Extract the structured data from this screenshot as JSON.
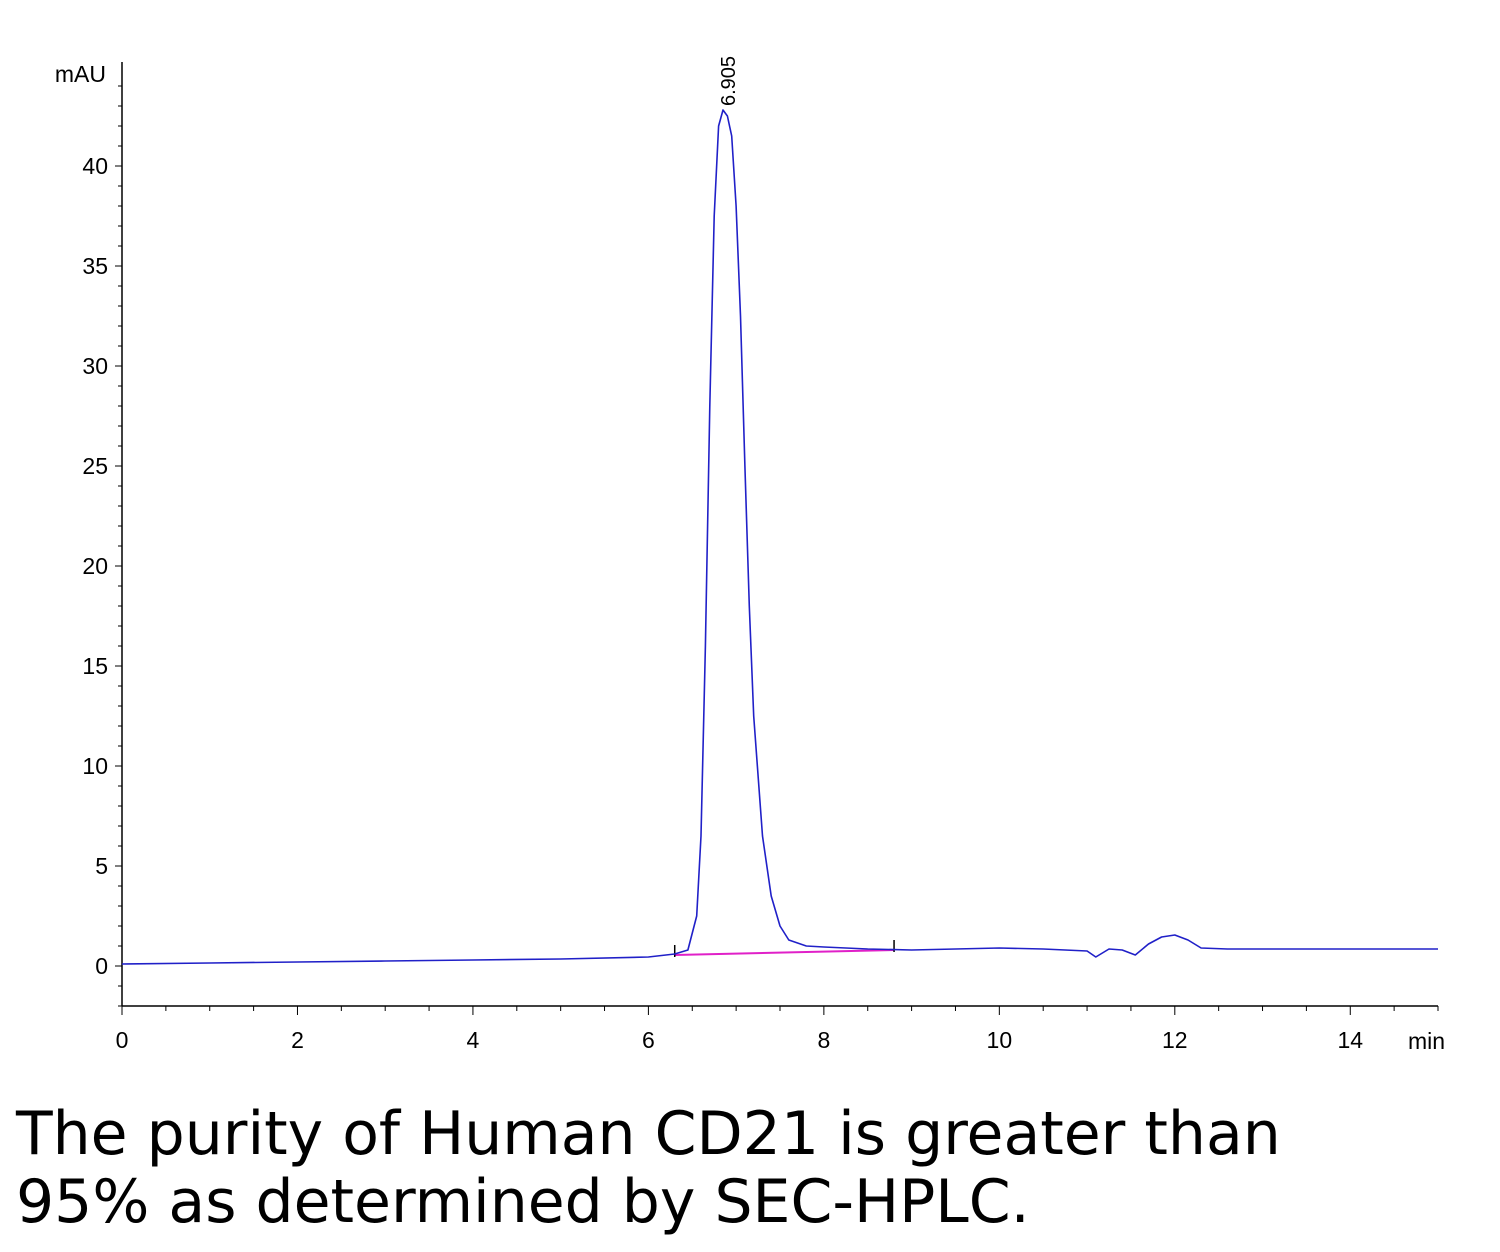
{
  "chart_data": {
    "type": "line",
    "title": "",
    "xlabel": "min",
    "ylabel": "mAU",
    "xlim": [
      0,
      15
    ],
    "ylim": [
      -2,
      45
    ],
    "x_major_ticks": [
      0,
      2,
      4,
      6,
      8,
      10,
      12,
      14
    ],
    "y_major_ticks": [
      0,
      5,
      10,
      15,
      20,
      25,
      30,
      35,
      40
    ],
    "grid": false,
    "series": [
      {
        "color": "#2020c8",
        "x": [
          0,
          1,
          2,
          3,
          4,
          5,
          6,
          6.3,
          6.45,
          6.55,
          6.6,
          6.65,
          6.7,
          6.75,
          6.8,
          6.85,
          6.9,
          6.95,
          7.0,
          7.05,
          7.1,
          7.15,
          7.2,
          7.3,
          7.4,
          7.5,
          7.6,
          7.8,
          8.0,
          8.5,
          9.0,
          9.5,
          10.0,
          10.5,
          11.0,
          11.1,
          11.25,
          11.4,
          11.55,
          11.7,
          11.85,
          12.0,
          12.15,
          12.3,
          12.6,
          13.0,
          14.0,
          15.0
        ],
        "y": [
          0.1,
          0.15,
          0.2,
          0.25,
          0.3,
          0.35,
          0.45,
          0.6,
          0.8,
          2.5,
          6.5,
          16.0,
          28.0,
          37.5,
          42.0,
          42.8,
          42.5,
          41.5,
          38.0,
          32.5,
          25.0,
          18.0,
          12.5,
          6.5,
          3.5,
          2.0,
          1.3,
          1.0,
          0.95,
          0.85,
          0.8,
          0.85,
          0.9,
          0.85,
          0.75,
          0.45,
          0.85,
          0.8,
          0.55,
          1.1,
          1.45,
          1.55,
          1.3,
          0.9,
          0.85,
          0.85,
          0.85,
          0.85
        ]
      }
    ],
    "baseline": {
      "color": "#e020c8",
      "x": [
        6.3,
        8.8
      ],
      "y": [
        0.55,
        0.8
      ]
    },
    "integration_marks_x": [
      6.3,
      8.8
    ],
    "annotations": [
      {
        "text": "6.905",
        "x": 6.905,
        "y": 42.8
      }
    ]
  },
  "caption": {
    "line1": "The purity of Human CD21 is greater than",
    "line2": "95% as determined by SEC-HPLC."
  }
}
